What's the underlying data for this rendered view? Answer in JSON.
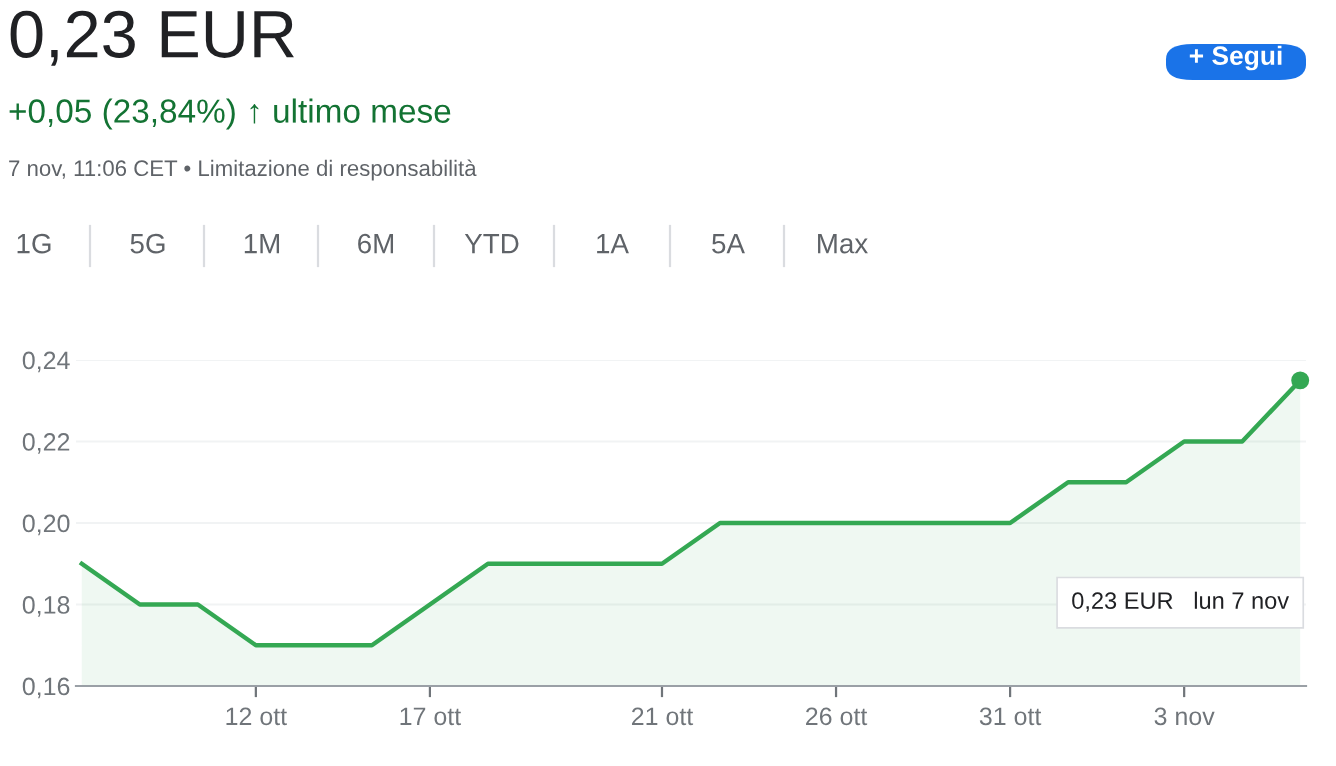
{
  "chart_data": {
    "type": "area",
    "title": "0,23 EUR",
    "subtitle": "+0,05 (23,84%) ↑ ultimo mese",
    "annotations": [
      "7 nov, 11:06 CET • Limitazione di responsabilità",
      "+ Segui",
      "1G",
      "5G",
      "1M",
      "6M",
      "YTD",
      "1A",
      "5A",
      "Max",
      "0,23 EUR   lun 7 nov"
    ],
    "categories": [
      null,
      null,
      null,
      "12 ott",
      null,
      null,
      "17 ott",
      null,
      null,
      null,
      "21 ott",
      null,
      null,
      "26 ott",
      null,
      null,
      "31 ott",
      null,
      null,
      "3 nov",
      null,
      null
    ],
    "series": [
      {
        "color": "#34a853",
        "values": [
          0.19,
          0.18,
          0.18,
          0.17,
          0.17,
          0.17,
          0.18,
          0.19,
          0.19,
          0.19,
          0.19,
          0.2,
          0.2,
          0.2,
          0.2,
          0.2,
          0.2,
          0.21,
          0.21,
          0.22,
          0.22,
          0.235
        ]
      },
      {
        "type": "scatter",
        "color": "#34a853",
        "values": [
          null,
          null,
          null,
          null,
          null,
          null,
          null,
          null,
          null,
          null,
          null,
          null,
          null,
          null,
          null,
          null,
          null,
          null,
          null,
          null,
          null,
          0.235
        ]
      }
    ],
    "ylim": [
      0.16,
      0.24
    ],
    "yticks": [
      {
        "value": 0.16,
        "label": "0,16"
      },
      {
        "value": 0.18,
        "label": "0,18"
      },
      {
        "value": 0.2,
        "label": "0,20"
      },
      {
        "value": 0.22,
        "label": "0,22"
      },
      {
        "value": 0.24,
        "label": "0,24"
      }
    ],
    "grid": "y"
  }
}
